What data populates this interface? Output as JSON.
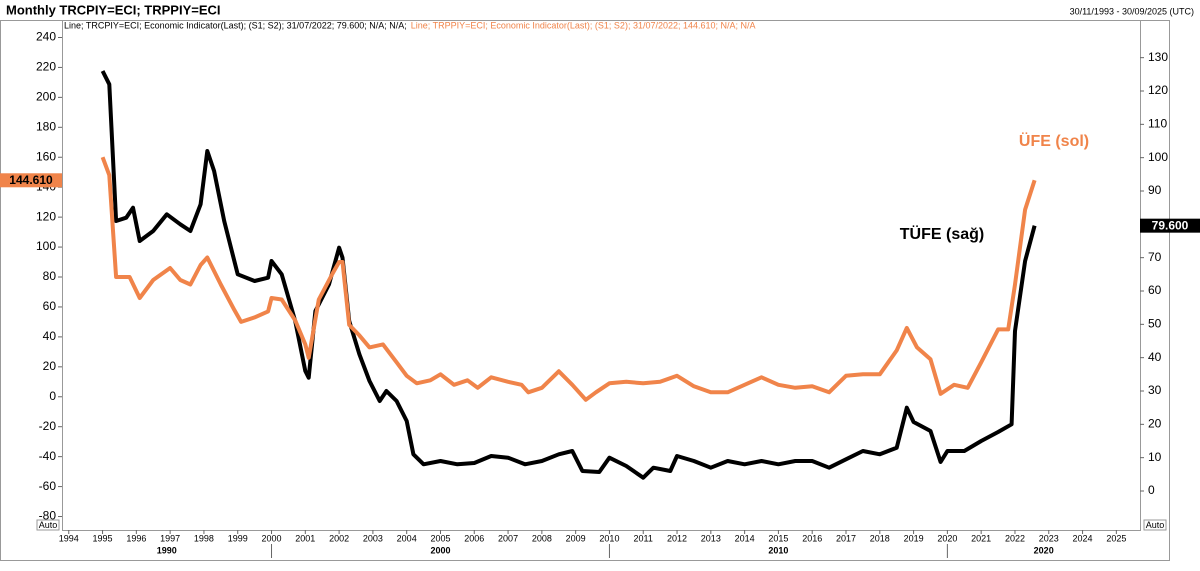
{
  "chart_data": {
    "type": "line",
    "title": "Monthly TRCPIY=ECI; TRPPIY=ECI",
    "date_range": "30/11/1993 - 30/09/2025 (UTC)",
    "xlim": [
      1993.8,
      2025.7
    ],
    "xticks": [
      1994,
      1995,
      1996,
      1997,
      1998,
      1999,
      2000,
      2001,
      2002,
      2003,
      2004,
      2005,
      2006,
      2007,
      2008,
      2009,
      2010,
      2011,
      2012,
      2013,
      2014,
      2015,
      2016,
      2017,
      2018,
      2019,
      2020,
      2021,
      2022,
      2023,
      2024,
      2025
    ],
    "decade_ticks": [
      1990,
      2000,
      2010,
      2020
    ],
    "ylim": [
      -89,
      245
    ],
    "yticks": [
      -80,
      -60,
      -40,
      -20,
      0,
      20,
      40,
      60,
      80,
      100,
      120,
      140,
      160,
      180,
      200,
      220,
      240
    ],
    "y2lim": [
      -11.7,
      138.3
    ],
    "y2ticks": [
      0,
      10,
      20,
      30,
      40,
      50,
      60,
      70,
      80,
      90,
      100,
      110,
      120,
      130
    ],
    "scale_mode": [
      "Auto",
      "Auto"
    ],
    "grid": false,
    "series": [
      {
        "name": "Line; TRCPIY=ECI; Economic Indicator(Last); (S1; S2); 31/07/2022; 79.600; N/A; N/A;",
        "color": "#000000",
        "axis": "y2",
        "last_value": {
          "value": 79.6,
          "label": "79.600"
        },
        "annotation": "TÜFE (sağ)",
        "x": [
          1995.0,
          1995.2,
          1995.4,
          1995.7,
          1995.9,
          1996.1,
          1996.5,
          1996.9,
          1997.3,
          1997.6,
          1997.9,
          1998.1,
          1998.3,
          1998.6,
          1999.0,
          1999.5,
          1999.9,
          2000.0,
          2000.3,
          2000.7,
          2001.0,
          2001.1,
          2001.3,
          2001.7,
          2002.0,
          2002.1,
          2002.3,
          2002.6,
          2002.9,
          2003.2,
          2003.4,
          2003.7,
          2004.0,
          2004.2,
          2004.5,
          2005.0,
          2005.5,
          2006.0,
          2006.5,
          2007.0,
          2007.5,
          2008.0,
          2008.5,
          2008.9,
          2009.2,
          2009.7,
          2010.0,
          2010.5,
          2011.0,
          2011.3,
          2011.8,
          2012.0,
          2012.5,
          2013.0,
          2013.5,
          2014.0,
          2014.5,
          2015.0,
          2015.5,
          2016.0,
          2016.5,
          2017.0,
          2017.5,
          2018.0,
          2018.5,
          2018.8,
          2019.0,
          2019.5,
          2019.8,
          2020.0,
          2020.5,
          2021.0,
          2021.5,
          2021.9,
          2022.0,
          2022.3,
          2022.58
        ],
        "values": [
          126,
          122,
          81,
          82,
          85,
          75,
          78,
          83,
          80,
          78,
          86,
          102,
          96,
          81,
          65,
          63,
          64,
          69,
          65,
          51,
          36,
          34,
          54,
          62,
          73,
          70,
          51,
          41,
          33,
          27,
          30,
          27,
          21,
          11,
          8,
          9,
          8,
          8.4,
          10.5,
          10,
          8,
          9,
          11,
          12,
          6,
          5.7,
          10,
          7.5,
          4,
          7,
          6,
          10.5,
          9,
          7,
          9,
          8,
          9,
          8,
          9,
          9,
          7,
          9.5,
          12,
          11,
          13,
          25,
          20.7,
          18,
          8.7,
          12,
          12,
          15,
          17.7,
          20,
          48,
          69,
          79.6
        ]
      },
      {
        "name": "Line; TRPPIY=ECI; Economic Indicator(Last); (S1; S2); 31/07/2022; 144.610; N/A; N/A",
        "color": "#f0844a",
        "axis": "y",
        "last_value": {
          "value": 144.61,
          "label": "144.610"
        },
        "annotation": "ÜFE (sol)",
        "x": [
          1995.0,
          1995.2,
          1995.4,
          1995.8,
          1996.1,
          1996.5,
          1997.0,
          1997.3,
          1997.6,
          1997.9,
          1998.1,
          1998.5,
          1998.9,
          1999.1,
          1999.5,
          1999.9,
          2000.0,
          2000.3,
          2000.7,
          2001.0,
          2001.1,
          2001.4,
          2001.8,
          2002.0,
          2002.1,
          2002.3,
          2002.6,
          2002.9,
          2003.3,
          2003.7,
          2004.0,
          2004.3,
          2004.7,
          2005.0,
          2005.4,
          2005.8,
          2006.1,
          2006.5,
          2007.0,
          2007.4,
          2007.6,
          2008.0,
          2008.5,
          2008.9,
          2009.3,
          2009.6,
          2010.0,
          2010.5,
          2011.0,
          2011.5,
          2012.0,
          2012.5,
          2013.0,
          2013.5,
          2014.0,
          2014.5,
          2015.0,
          2015.5,
          2016.0,
          2016.5,
          2017.0,
          2017.5,
          2018.0,
          2018.5,
          2018.8,
          2019.1,
          2019.5,
          2019.8,
          2020.2,
          2020.6,
          2021.0,
          2021.5,
          2021.8,
          2022.0,
          2022.3,
          2022.58
        ],
        "values": [
          160,
          148,
          80,
          80,
          66,
          78,
          86,
          78,
          75,
          88,
          93,
          75,
          58,
          50,
          53,
          57,
          66,
          65,
          51,
          35,
          26,
          65,
          82,
          90,
          90,
          48,
          41,
          33,
          35,
          23,
          14,
          9,
          11,
          15,
          8,
          11,
          6,
          13,
          10,
          8,
          3,
          6,
          17,
          8,
          -2,
          3,
          9,
          10,
          9,
          10,
          14,
          7,
          3,
          3,
          8,
          13,
          8,
          6,
          7,
          3,
          14,
          15,
          15,
          31,
          46,
          33,
          25,
          2,
          8,
          6,
          23,
          45,
          45,
          75,
          125,
          144.61
        ]
      }
    ]
  }
}
